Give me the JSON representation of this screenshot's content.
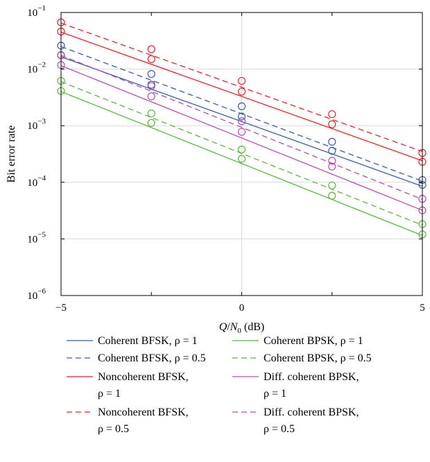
{
  "chart_data": {
    "type": "line",
    "xlabel_main": "Q",
    "xlabel_sub": "N",
    "xlabel_sub_index": "0",
    "xlabel_unit": "(dB)",
    "ylabel": "Bit error rate",
    "y_scale": "log",
    "xlim": [
      -5,
      5
    ],
    "ylim": [
      1e-06,
      0.1
    ],
    "x_ticks": [
      -5,
      0,
      5
    ],
    "x_tick_labels": [
      "−5",
      "0",
      "5"
    ],
    "y_tick_exponents": [
      "−1",
      "−2",
      "−3",
      "−4",
      "−5",
      "−6"
    ],
    "y_tick_values": [
      0.1,
      0.01,
      0.001,
      0.0001,
      1e-05,
      1e-06
    ],
    "y_tick_base": "10",
    "grid": true,
    "legend_placement": "below",
    "series": [
      {
        "name_text": "Coherent BFSK, ",
        "name_rho": "ρ",
        "name_val": " = 1",
        "color": "#3a5ba8",
        "dash": "solid",
        "line": {
          "x": [
            -5,
            5
          ],
          "y": [
            0.0165,
            8.5e-05
          ]
        },
        "markers": {
          "x": [
            -5,
            -2.5,
            0,
            2.5,
            5
          ],
          "y": [
            0.0175,
            0.0053,
            0.00145,
            0.00036,
            9e-05
          ]
        }
      },
      {
        "name_text": "Coherent BFSK, ",
        "name_rho": "ρ",
        "name_val": " = 0.5",
        "color": "#3a5ba8",
        "dash": "dashed",
        "line": {
          "x": [
            -5,
            5
          ],
          "y": [
            0.025,
            0.000105
          ]
        },
        "markers": {
          "x": [
            -5,
            -2.5,
            0,
            2.5,
            5
          ],
          "y": [
            0.026,
            0.0082,
            0.0022,
            0.00052,
            0.00011
          ]
        }
      },
      {
        "name_text": "Noncoherent BFSK, ",
        "name_rho": "ρ",
        "name_val": " = 1",
        "color": "#e3242b",
        "dash": "solid",
        "line": {
          "x": [
            -5,
            5
          ],
          "y": [
            0.045,
            0.00024
          ]
        },
        "markers": {
          "x": [
            -5,
            -2.5,
            0,
            2.5,
            5
          ],
          "y": [
            0.046,
            0.015,
            0.004,
            0.00106,
            0.00023
          ]
        }
      },
      {
        "name_text": "Noncoherent BFSK, ",
        "name_rho": "ρ",
        "name_val": " = 0.5",
        "color": "#e3242b",
        "dash": "dashed",
        "line": {
          "x": [
            -5,
            5
          ],
          "y": [
            0.065,
            0.00035
          ]
        },
        "markers": {
          "x": [
            -5,
            -2.5,
            0,
            2.5,
            5
          ],
          "y": [
            0.067,
            0.0225,
            0.0062,
            0.0016,
            0.00033
          ]
        }
      },
      {
        "name_text": "Coherent BPSK, ",
        "name_rho": "ρ",
        "name_val": " = 1",
        "color": "#5ab541",
        "dash": "solid",
        "line": {
          "x": [
            -5,
            5
          ],
          "y": [
            0.004,
            1.15e-05
          ]
        },
        "markers": {
          "x": [
            -5,
            -2.5,
            0,
            2.5,
            5
          ],
          "y": [
            0.0041,
            0.00112,
            0.00026,
            5.8e-05,
            1.2e-05
          ]
        }
      },
      {
        "name_text": "Coherent BPSK, ",
        "name_rho": "ρ",
        "name_val": " = 0.5",
        "color": "#5ab541",
        "dash": "dashed",
        "line": {
          "x": [
            -5,
            5
          ],
          "y": [
            0.006,
            1.75e-05
          ]
        },
        "markers": {
          "x": [
            -5,
            -2.5,
            0,
            2.5,
            5
          ],
          "y": [
            0.0062,
            0.00165,
            0.00038,
            8.8e-05,
            1.82e-05
          ]
        }
      },
      {
        "name_text": "Diff. coherent BPSK, ",
        "name_rho": "ρ",
        "name_val": " = 1",
        "color": "#b150b0",
        "dash": "solid",
        "line": {
          "x": [
            -5,
            5
          ],
          "y": [
            0.0115,
            3.2e-05
          ]
        },
        "markers": {
          "x": [
            -5,
            -2.5,
            0,
            2.5,
            5
          ],
          "y": [
            0.0118,
            0.0033,
            0.00078,
            0.00019,
            3.2e-05
          ]
        }
      },
      {
        "name_text": "Diff. coherent BPSK, ",
        "name_rho": "ρ",
        "name_val": " = 0.5",
        "color": "#b150b0",
        "dash": "dashed",
        "line": {
          "x": [
            -5,
            5
          ],
          "y": [
            0.0175,
            5e-05
          ]
        },
        "markers": {
          "x": [
            -5,
            -2.5,
            0,
            2.5,
            5
          ],
          "y": [
            0.0177,
            0.005,
            0.0012,
            0.00024,
            5.1e-05
          ]
        }
      }
    ],
    "legend_rows": [
      {
        "left": {
          "series": 0,
          "line1": "Coherent BFSK, ρ = 1"
        },
        "right": {
          "series": 4,
          "line1": "Coherent BPSK, ρ = 1"
        }
      },
      {
        "left": {
          "series": 1,
          "line1": "Coherent BFSK, ρ = 0.5"
        },
        "right": {
          "series": 5,
          "line1": "Coherent BPSK, ρ = 0.5"
        }
      },
      {
        "left": {
          "series": 2,
          "line1": "Noncoherent BFSK,",
          "line2": "ρ = 1"
        },
        "right": {
          "series": 6,
          "line1": "Diff. coherent BPSK,",
          "line2": "ρ = 1"
        }
      },
      {
        "left": {
          "series": 3,
          "line1": "Noncoherent BFSK,",
          "line2": "ρ = 0.5"
        },
        "right": {
          "series": 7,
          "line1": "Diff. coherent BPSK,",
          "line2": "ρ = 0.5"
        }
      }
    ]
  }
}
